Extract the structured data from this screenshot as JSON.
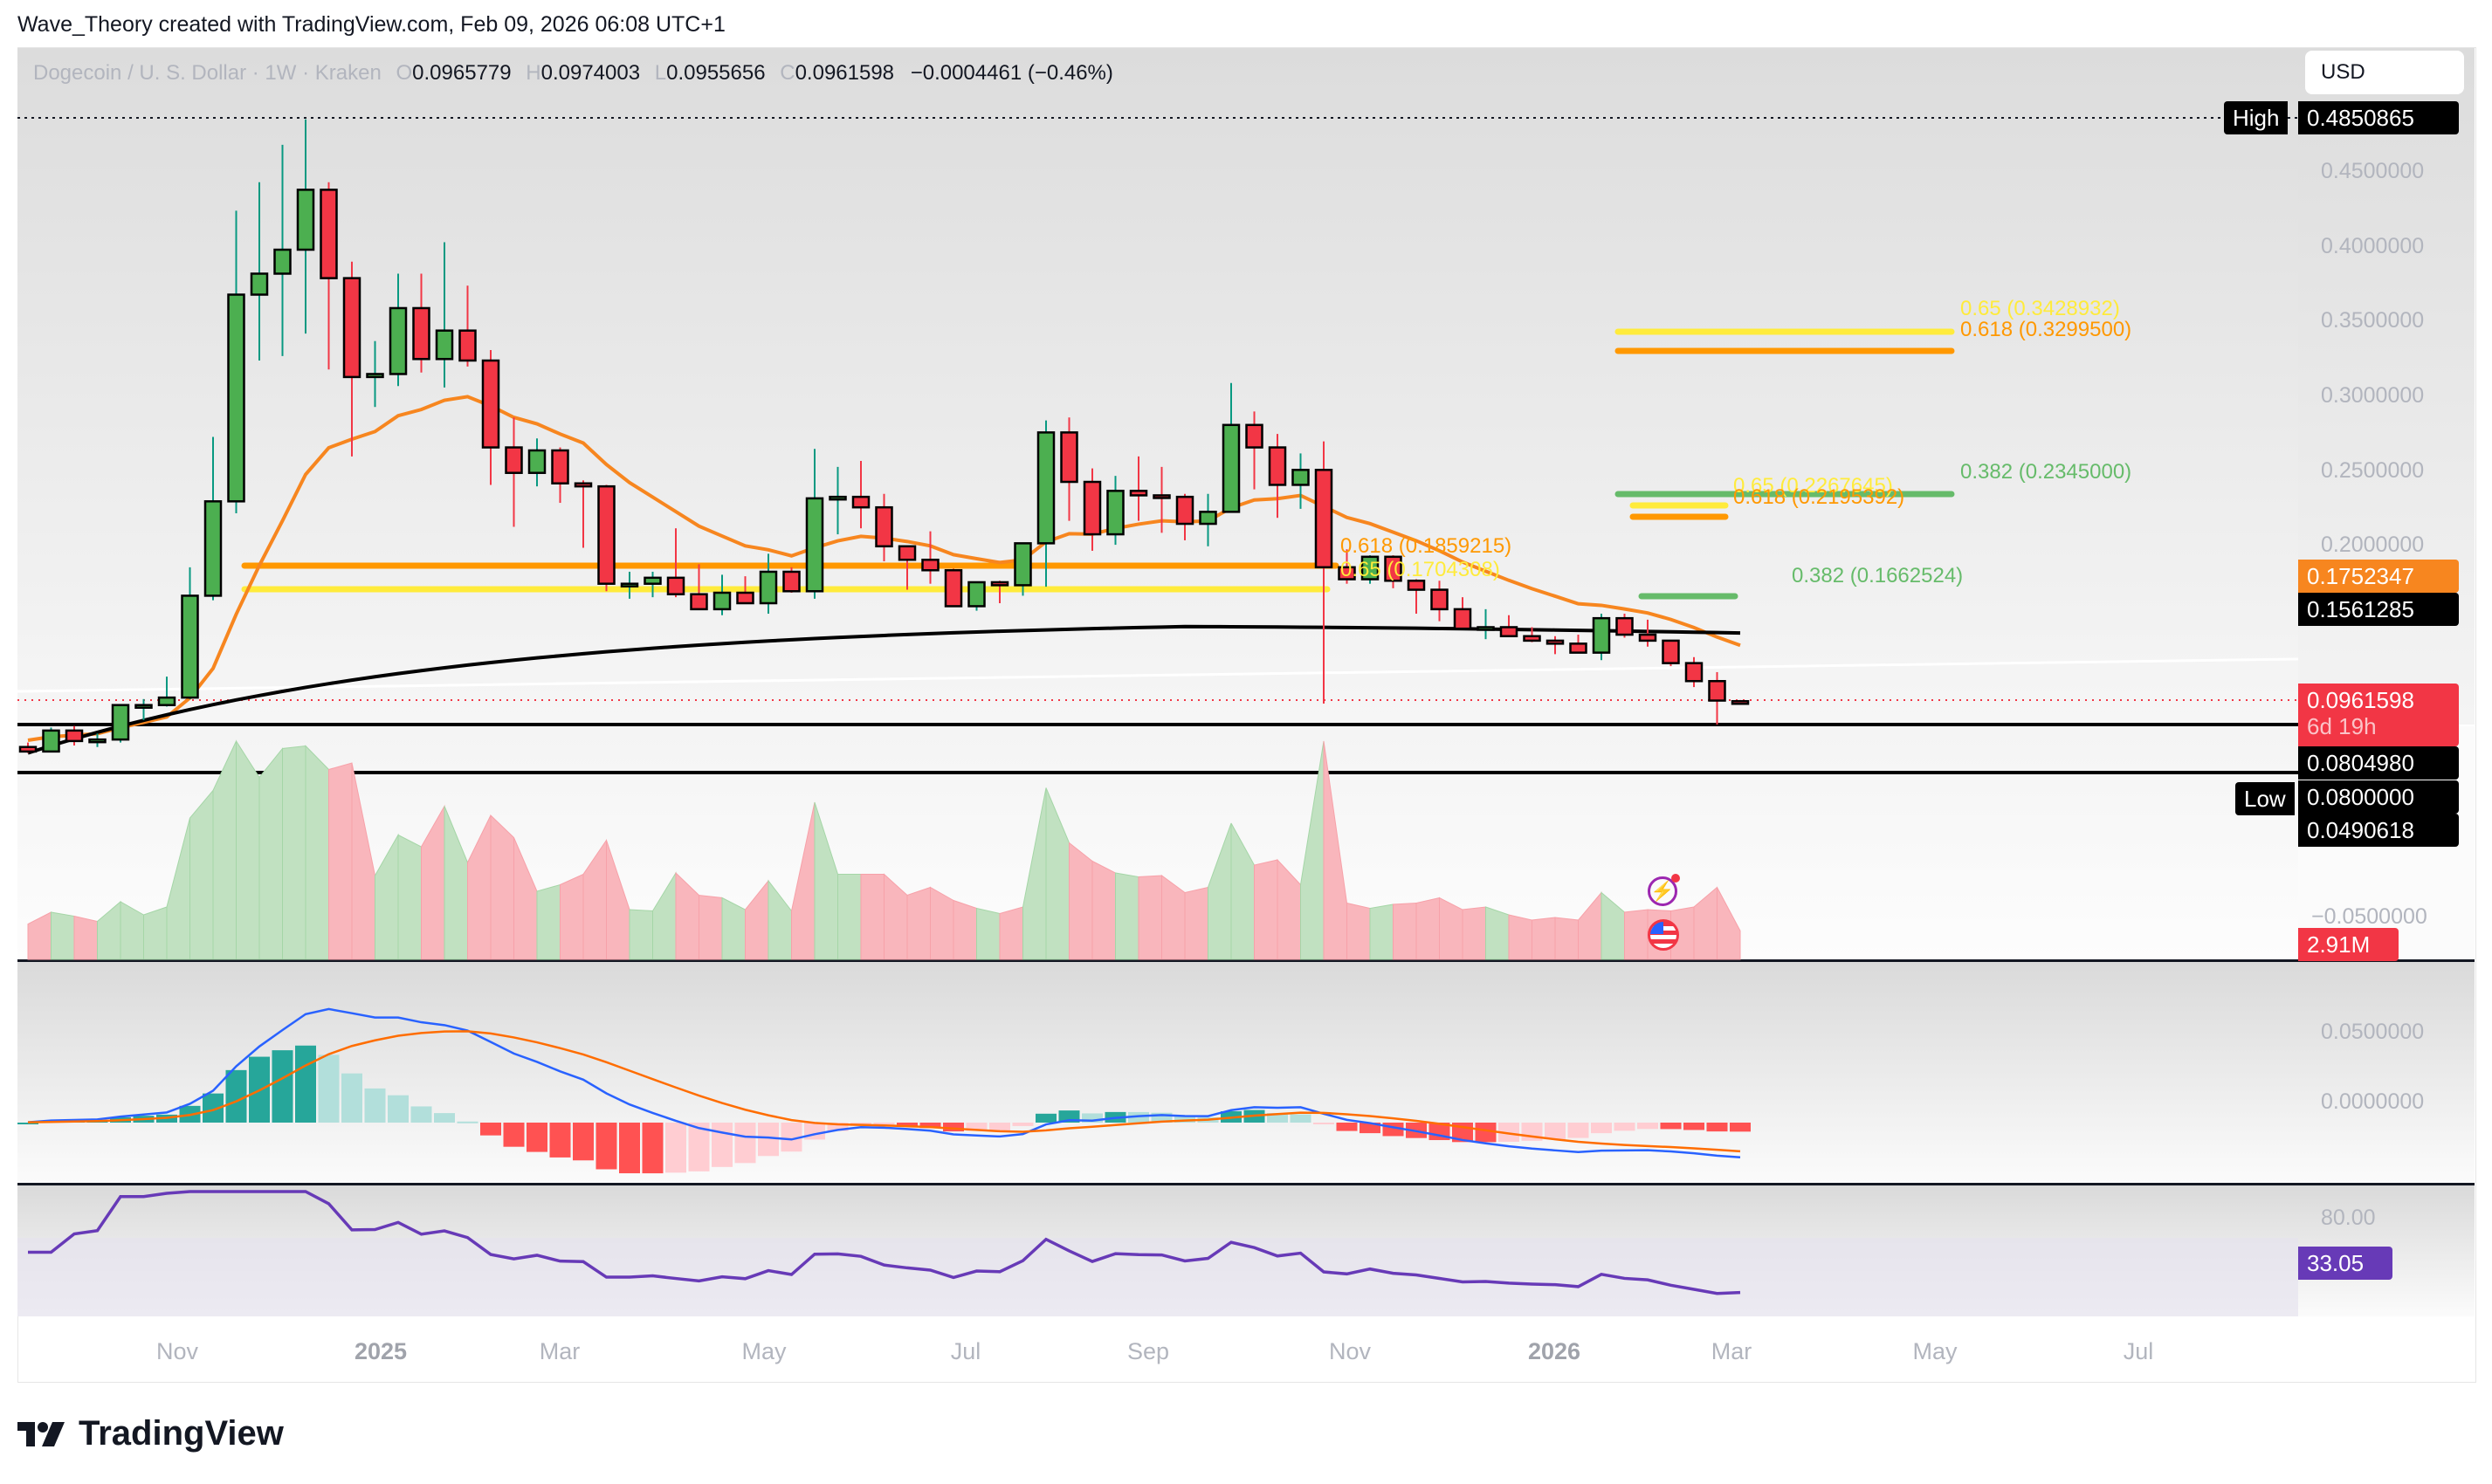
{
  "attribution": "Wave_Theory created with TradingView.com, Feb 09, 2026 06:08 UTC+1",
  "legend": {
    "symbol": "Dogecoin / U. S. Dollar · 1W · Kraken",
    "open_label": "O",
    "open": "0.0965779",
    "high_label": "H",
    "high": "0.0974003",
    "low_label": "L",
    "low": "0.0955656",
    "close_label": "C",
    "close": "0.0961598",
    "change": "−0.0004461 (−0.46%)"
  },
  "currency_button": "USD",
  "price_axis": {
    "ticks": [
      "0.4500000",
      "0.4000000",
      "0.3500000",
      "0.3000000",
      "0.2500000",
      "0.2000000"
    ],
    "high_label": "High",
    "high_value": "0.4850865",
    "low_label": "Low",
    "ema_orange_value": "0.1752347",
    "ema_black_value": "0.1561285",
    "last_price": "0.0961598",
    "countdown": "6d 19h",
    "support_1": "0.0804980",
    "low_value": "0.0800000",
    "osc_value": "0.0490618"
  },
  "volume_axis": {
    "tick": "−0.0500000",
    "volume_tag": "2.91M"
  },
  "macd_axis": {
    "ticks": [
      "0.0500000",
      "0.0000000"
    ]
  },
  "rsi_axis": {
    "tick": "80.00",
    "value": "33.05"
  },
  "time_axis": [
    "Nov",
    "2025",
    "Mar",
    "May",
    "Jul",
    "Sep",
    "Nov",
    "2026",
    "Mar",
    "May",
    "Jul"
  ],
  "fib_levels": [
    {
      "label": "0.65 (0.3428932)",
      "color": "#ffeb3b"
    },
    {
      "label": "0.618 (0.3299500)",
      "color": "#ff9800"
    },
    {
      "label": "0.382 (0.2345000)",
      "color": "#66bb6a"
    },
    {
      "label": "0.65 (0.2267645)",
      "color": "#ffeb3b"
    },
    {
      "label": "0.618 (0.2195392)",
      "color": "#ff9800"
    },
    {
      "label": "0.618 (0.1859215)",
      "color": "#ff9800"
    },
    {
      "label": "0.65 (0.1704308)",
      "color": "#ffeb3b"
    },
    {
      "label": "0.382 (0.1662524)",
      "color": "#66bb6a"
    }
  ],
  "brand": "TradingView",
  "colors": {
    "up": "#4caf50",
    "down": "#f23645",
    "ema50": "#f7861f",
    "ema200": "#000000",
    "rsi": "#673ab7",
    "macd": "#2962ff",
    "signal": "#ff6d00",
    "last_price_tag": "#f23645"
  },
  "chart_data": {
    "type": "candlestick",
    "title": "Dogecoin / U. S. Dollar · 1W · Kraken",
    "x_ticks": [
      "Nov",
      "2025",
      "Mar",
      "May",
      "Jul",
      "Sep",
      "Nov",
      "2026",
      "Mar",
      "May",
      "Jul"
    ],
    "ylim": [
      0.05,
      0.5
    ],
    "ohlc_approx": [
      [
        0.066,
        0.069,
        0.062,
        0.063
      ],
      [
        0.063,
        0.079,
        0.063,
        0.077
      ],
      [
        0.077,
        0.08,
        0.067,
        0.07
      ],
      [
        0.07,
        0.075,
        0.066,
        0.071
      ],
      [
        0.071,
        0.093,
        0.069,
        0.094
      ],
      [
        0.094,
        0.098,
        0.084,
        0.094
      ],
      [
        0.094,
        0.113,
        0.093,
        0.099
      ],
      [
        0.099,
        0.186,
        0.098,
        0.167
      ],
      [
        0.167,
        0.273,
        0.164,
        0.23
      ],
      [
        0.23,
        0.424,
        0.222,
        0.368
      ],
      [
        0.368,
        0.443,
        0.324,
        0.382
      ],
      [
        0.382,
        0.468,
        0.327,
        0.398
      ],
      [
        0.398,
        0.485,
        0.342,
        0.438
      ],
      [
        0.438,
        0.443,
        0.318,
        0.379
      ],
      [
        0.379,
        0.39,
        0.26,
        0.313
      ],
      [
        0.313,
        0.337,
        0.293,
        0.315
      ],
      [
        0.315,
        0.382,
        0.307,
        0.359
      ],
      [
        0.359,
        0.382,
        0.316,
        0.325
      ],
      [
        0.325,
        0.403,
        0.306,
        0.344
      ],
      [
        0.344,
        0.374,
        0.32,
        0.324
      ],
      [
        0.324,
        0.331,
        0.241,
        0.266
      ],
      [
        0.266,
        0.286,
        0.213,
        0.249
      ],
      [
        0.249,
        0.272,
        0.24,
        0.264
      ],
      [
        0.264,
        0.266,
        0.229,
        0.242
      ],
      [
        0.242,
        0.244,
        0.199,
        0.24
      ],
      [
        0.24,
        0.241,
        0.17,
        0.175
      ],
      [
        0.175,
        0.183,
        0.165,
        0.175
      ],
      [
        0.175,
        0.183,
        0.166,
        0.179
      ],
      [
        0.179,
        0.212,
        0.166,
        0.168
      ],
      [
        0.168,
        0.188,
        0.159,
        0.158
      ],
      [
        0.158,
        0.181,
        0.154,
        0.169
      ],
      [
        0.169,
        0.18,
        0.162,
        0.162
      ],
      [
        0.162,
        0.195,
        0.155,
        0.183
      ],
      [
        0.183,
        0.186,
        0.169,
        0.17
      ],
      [
        0.17,
        0.265,
        0.165,
        0.232
      ],
      [
        0.232,
        0.253,
        0.208,
        0.233
      ],
      [
        0.233,
        0.257,
        0.212,
        0.226
      ],
      [
        0.226,
        0.235,
        0.19,
        0.2
      ],
      [
        0.2,
        0.2,
        0.171,
        0.191
      ],
      [
        0.191,
        0.21,
        0.175,
        0.184
      ],
      [
        0.184,
        0.185,
        0.16,
        0.16
      ],
      [
        0.16,
        0.176,
        0.157,
        0.176
      ],
      [
        0.176,
        0.177,
        0.162,
        0.174
      ],
      [
        0.174,
        0.187,
        0.167,
        0.202
      ],
      [
        0.202,
        0.284,
        0.173,
        0.276
      ],
      [
        0.276,
        0.286,
        0.217,
        0.243
      ],
      [
        0.243,
        0.252,
        0.197,
        0.208
      ],
      [
        0.208,
        0.247,
        0.201,
        0.237
      ],
      [
        0.237,
        0.26,
        0.217,
        0.234
      ],
      [
        0.234,
        0.253,
        0.209,
        0.233
      ],
      [
        0.233,
        0.235,
        0.204,
        0.215
      ],
      [
        0.215,
        0.235,
        0.2,
        0.223
      ],
      [
        0.223,
        0.309,
        0.225,
        0.281
      ],
      [
        0.281,
        0.29,
        0.238,
        0.266
      ],
      [
        0.266,
        0.275,
        0.219,
        0.241
      ],
      [
        0.241,
        0.262,
        0.225,
        0.251
      ],
      [
        0.251,
        0.27,
        0.095,
        0.186
      ],
      [
        0.186,
        0.198,
        0.175,
        0.178
      ],
      [
        0.178,
        0.194,
        0.175,
        0.193
      ],
      [
        0.193,
        0.194,
        0.172,
        0.177
      ],
      [
        0.177,
        0.178,
        0.155,
        0.171
      ],
      [
        0.171,
        0.177,
        0.15,
        0.158
      ],
      [
        0.158,
        0.166,
        0.148,
        0.145
      ],
      [
        0.145,
        0.158,
        0.138,
        0.146
      ],
      [
        0.146,
        0.154,
        0.14,
        0.14
      ],
      [
        0.14,
        0.146,
        0.136,
        0.137
      ],
      [
        0.137,
        0.14,
        0.128,
        0.135
      ],
      [
        0.135,
        0.141,
        0.131,
        0.129
      ],
      [
        0.129,
        0.155,
        0.124,
        0.152
      ],
      [
        0.152,
        0.155,
        0.139,
        0.141
      ],
      [
        0.141,
        0.151,
        0.133,
        0.137
      ],
      [
        0.137,
        0.137,
        0.12,
        0.122
      ],
      [
        0.122,
        0.126,
        0.106,
        0.11
      ],
      [
        0.11,
        0.116,
        0.081,
        0.097
      ],
      [
        0.0966,
        0.0974,
        0.0956,
        0.0962
      ]
    ],
    "series": [
      {
        "name": "EMA (orange)",
        "last": 0.1752347
      },
      {
        "name": "EMA (black)",
        "last": 0.1561285
      }
    ],
    "indicators": {
      "volume_last": "2.91M",
      "macd_ticks": [
        0.05,
        0.0
      ],
      "rsi_last": 33.05,
      "rsi_band": [
        30,
        70
      ]
    },
    "annotations": [
      "High 0.4850865",
      "Low 0.0800000",
      "0.618 (0.3299500)",
      "0.65 (0.3428932)",
      "0.382 (0.2345000)",
      "0.618 (0.2195392)",
      "0.65 (0.2267645)",
      "0.382 (0.1662524)",
      "0.618 (0.1859215)",
      "0.65 (0.1704308)"
    ]
  }
}
